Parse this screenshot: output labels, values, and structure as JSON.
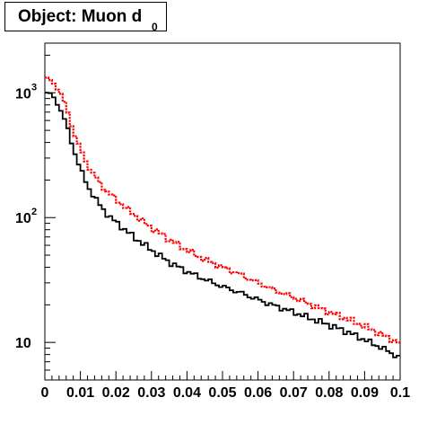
{
  "chart_data": {
    "type": "line",
    "title": "Object: Muon d",
    "title_subscript": "0",
    "xlim": [
      0,
      0.1
    ],
    "ylim": [
      5,
      2500
    ],
    "y_scale": "log",
    "grid": false,
    "x_tick_labels": [
      "0",
      "0.01",
      "0.02",
      "0.03",
      "0.04",
      "0.05",
      "0.06",
      "0.07",
      "0.08",
      "0.09",
      "0.1"
    ],
    "y_tick_labels": [
      {
        "value": 1000,
        "base": "10",
        "exp": "3"
      },
      {
        "value": 100,
        "base": "10",
        "exp": "2"
      },
      {
        "value": 10,
        "base": "10",
        "exp": ""
      }
    ],
    "series": [
      {
        "style": "histogram-step",
        "color": "#000000",
        "x": [
          0.0,
          0.002,
          0.004,
          0.006,
          0.008,
          0.01,
          0.012,
          0.014,
          0.016,
          0.018,
          0.02,
          0.025,
          0.03,
          0.035,
          0.04,
          0.045,
          0.05,
          0.055,
          0.06,
          0.065,
          0.07,
          0.075,
          0.08,
          0.085,
          0.09,
          0.095,
          0.1
        ],
        "values": [
          1020,
          950,
          790,
          560,
          360,
          245,
          180,
          145,
          120,
          103,
          92,
          70,
          55,
          44,
          37,
          32,
          28,
          25,
          22,
          19.5,
          17.5,
          15.5,
          13.8,
          12.2,
          10.5,
          9,
          7.5
        ]
      },
      {
        "style": "histogram-dotted",
        "color": "#ff0000",
        "x": [
          0.0,
          0.002,
          0.004,
          0.006,
          0.008,
          0.01,
          0.012,
          0.014,
          0.016,
          0.018,
          0.02,
          0.025,
          0.03,
          0.035,
          0.04,
          0.045,
          0.05,
          0.055,
          0.06,
          0.065,
          0.07,
          0.075,
          0.08,
          0.085,
          0.09,
          0.095,
          0.1
        ],
        "values": [
          1300,
          1230,
          1060,
          760,
          500,
          350,
          265,
          215,
          180,
          157,
          140,
          106,
          83,
          67,
          55,
          46,
          40,
          35,
          30,
          26,
          23,
          20,
          17.5,
          15.5,
          13.5,
          11.5,
          9.8
        ]
      }
    ]
  }
}
